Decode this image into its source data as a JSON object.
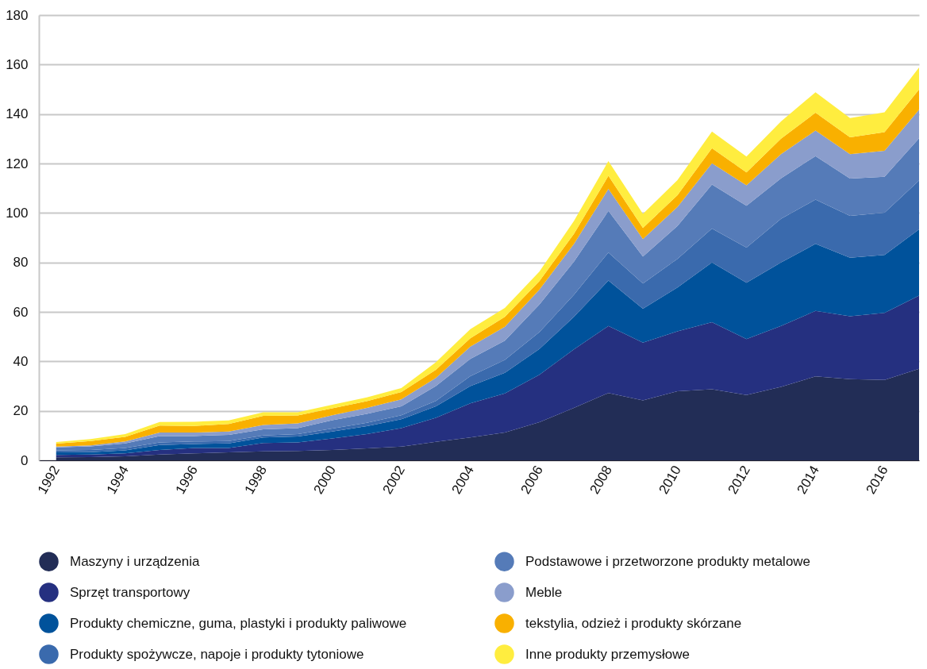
{
  "chart_data": {
    "type": "area",
    "stacked": true,
    "grid": "y",
    "legend": "bottom",
    "x": [
      1992,
      1993,
      1994,
      1995,
      1996,
      1997,
      1998,
      1999,
      2000,
      2001,
      2002,
      2003,
      2004,
      2005,
      2006,
      2007,
      2008,
      2009,
      2010,
      2011,
      2012,
      2013,
      2014,
      2015,
      2016,
      2017
    ],
    "xlim": [
      1991.5,
      2017
    ],
    "xticks": [
      1992,
      1994,
      1996,
      1998,
      2000,
      2002,
      2004,
      2006,
      2008,
      2010,
      2012,
      2014,
      2016
    ],
    "ylim": [
      0,
      180
    ],
    "yticks": [
      0,
      20,
      40,
      60,
      80,
      100,
      120,
      140,
      160,
      180
    ],
    "series": [
      {
        "name": "Maszyny i urządzenia",
        "color": "#222d56",
        "values": [
          1.2,
          1.3,
          1.6,
          2.3,
          2.8,
          3.2,
          3.6,
          3.8,
          4.2,
          4.8,
          5.5,
          7.5,
          9.2,
          11.2,
          15.4,
          21.2,
          27.2,
          24.2,
          27.9,
          28.7,
          26.4,
          29.7,
          33.9,
          32.8,
          32.5,
          37
        ]
      },
      {
        "name": "Sprzęt transportowy",
        "color": "#253080",
        "values": [
          1,
          1,
          1.2,
          1.9,
          2.2,
          1.8,
          3.4,
          3.4,
          4.6,
          5.8,
          7.5,
          9.7,
          13.8,
          15.8,
          19.2,
          23.6,
          27.1,
          23.4,
          24.2,
          27.1,
          22.6,
          24.6,
          26.5,
          25.4,
          27.1,
          29.6
        ]
      },
      {
        "name": "Produkty chemiczne, guma, plastyki i produkty paliwowe",
        "color": "#00529b",
        "values": [
          1,
          1,
          1.2,
          2,
          1.6,
          1.8,
          2.2,
          2.4,
          2.8,
          3.2,
          3.6,
          4.6,
          7,
          8.4,
          10.4,
          13.2,
          18.4,
          13.7,
          17.8,
          24.2,
          22.8,
          25.7,
          27.1,
          23.7,
          23.4,
          26.8
        ]
      },
      {
        "name": "Produkty spożywcze, napoje i produkty tytoniowe",
        "color": "#3a6aad",
        "values": [
          0.8,
          0.9,
          1,
          1,
          1,
          1,
          0.8,
          1,
          1.2,
          1.4,
          1.6,
          2.2,
          4,
          5.2,
          6.8,
          8.9,
          11.3,
          10.2,
          11.5,
          13.7,
          14.2,
          17.6,
          17.9,
          16.9,
          17.1,
          19.7
        ]
      },
      {
        "name": "Podstawowe i przetworzone produkty metalowe",
        "color": "#557bb8",
        "values": [
          1.2,
          1.4,
          1.8,
          2.6,
          2.2,
          2.5,
          2.5,
          2.4,
          3.4,
          3.6,
          3.6,
          6,
          7,
          7.8,
          11.2,
          13.4,
          16.8,
          10.9,
          13.3,
          17.8,
          16.9,
          16.4,
          17.6,
          15.1,
          14.5,
          17.1
        ]
      },
      {
        "name": "Meble",
        "color": "#8a9dcc",
        "values": [
          0.3,
          0.4,
          0.8,
          1.4,
          1.4,
          1.3,
          1.8,
          1.9,
          2,
          2.4,
          2.8,
          3.3,
          5,
          5.6,
          6,
          7.1,
          8.9,
          7,
          7.7,
          8.6,
          8.3,
          9.8,
          10.3,
          9.9,
          10.5,
          11.5
        ]
      },
      {
        "name": "tekstylia, odzież i produkty skórzane",
        "color": "#f9b000",
        "values": [
          1.2,
          1.8,
          1.9,
          2.8,
          2.7,
          3.1,
          3.7,
          3.2,
          2.8,
          2.7,
          3,
          3.3,
          3.3,
          4,
          3.4,
          4.1,
          5.3,
          4.5,
          4.8,
          6.1,
          5.2,
          6.2,
          7.2,
          6.8,
          7.6,
          8.2
        ]
      },
      {
        "name": "Inne produkty przemysłowe",
        "color": "#ffed3f",
        "values": [
          0.7,
          0.8,
          1.1,
          1.5,
          1.7,
          1.4,
          1.4,
          1.3,
          1.5,
          1.5,
          1.6,
          3,
          3.7,
          3.6,
          3.9,
          5.2,
          6,
          5.7,
          6.1,
          6.7,
          6.4,
          7,
          8.3,
          7.8,
          8,
          8.9
        ]
      }
    ]
  }
}
